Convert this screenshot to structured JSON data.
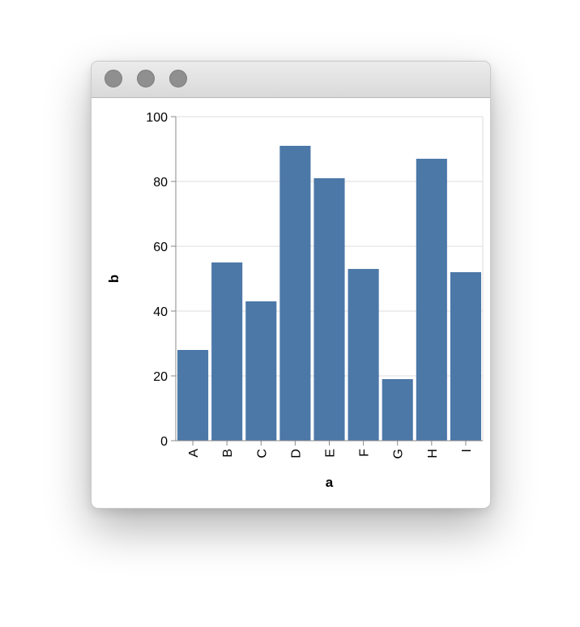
{
  "colors": {
    "bar": "#4c78a8",
    "grid": "#dddddd",
    "axis": "#888888"
  },
  "chart_data": {
    "type": "bar",
    "categories": [
      "A",
      "B",
      "C",
      "D",
      "E",
      "F",
      "G",
      "H",
      "I"
    ],
    "values": [
      28,
      55,
      43,
      91,
      81,
      53,
      19,
      87,
      52
    ],
    "xlabel": "a",
    "ylabel": "b",
    "ylim": [
      0,
      100
    ],
    "yticks": [
      0,
      20,
      40,
      60,
      80,
      100
    ],
    "grid": true
  }
}
